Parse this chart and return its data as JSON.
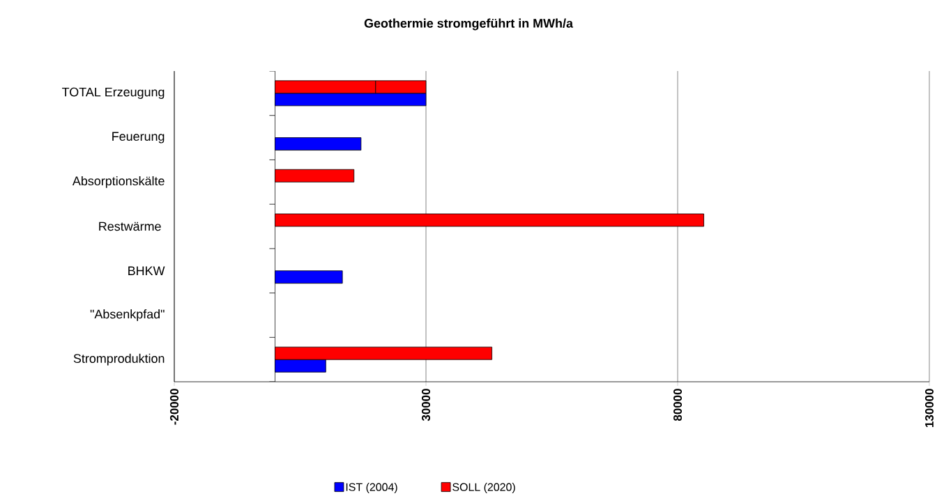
{
  "chart_data": {
    "type": "bar",
    "orientation": "horizontal",
    "title": "Geothermie stromgeführt in MWh/a",
    "categories": [
      "TOTAL Erzeugung",
      "Feuerung",
      "Absorptionskälte",
      "Restwärme ",
      "BHKW",
      "\"Absenkpfad\"",
      "Stromproduktion"
    ],
    "series": [
      {
        "name": "IST (2004)",
        "color": "#0000ff",
        "values": [
          30000,
          17100,
          null,
          null,
          13400,
          null,
          10100
        ]
      },
      {
        "name": "SOLL (2020)",
        "color": "#ff0000",
        "values": [
          20000,
          null,
          15700,
          85200,
          null,
          null,
          43100
        ]
      },
      {
        "color": "#ff0000",
        "values": [
          10000,
          null,
          null,
          null,
          null,
          null,
          null
        ],
        "base": [
          20000,
          null,
          null,
          null,
          null,
          null,
          null
        ]
      }
    ],
    "xlim": [
      -20000,
      130000
    ],
    "xticks": [
      -20000,
      30000,
      80000,
      130000
    ],
    "grid": "x",
    "legend": "bottom"
  }
}
